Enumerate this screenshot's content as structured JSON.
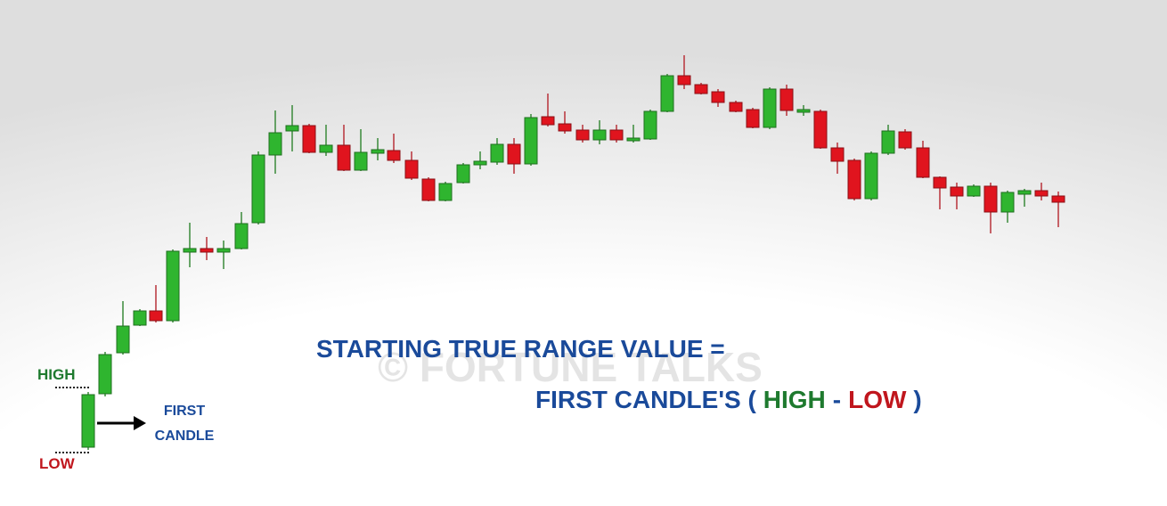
{
  "slide": {
    "watermark": "© FORTUNE TALKS",
    "high_label": "HIGH",
    "low_label": "LOW",
    "first_candle_label": [
      "FIRST",
      "CANDLE"
    ],
    "formula": {
      "line1": "STARTING TRUE RANGE VALUE =",
      "line2": {
        "prefix": "FIRST CANDLE'S (",
        "high": "HIGH",
        "minus": "-",
        "low": "LOW",
        "suffix": ")"
      }
    }
  }
}
